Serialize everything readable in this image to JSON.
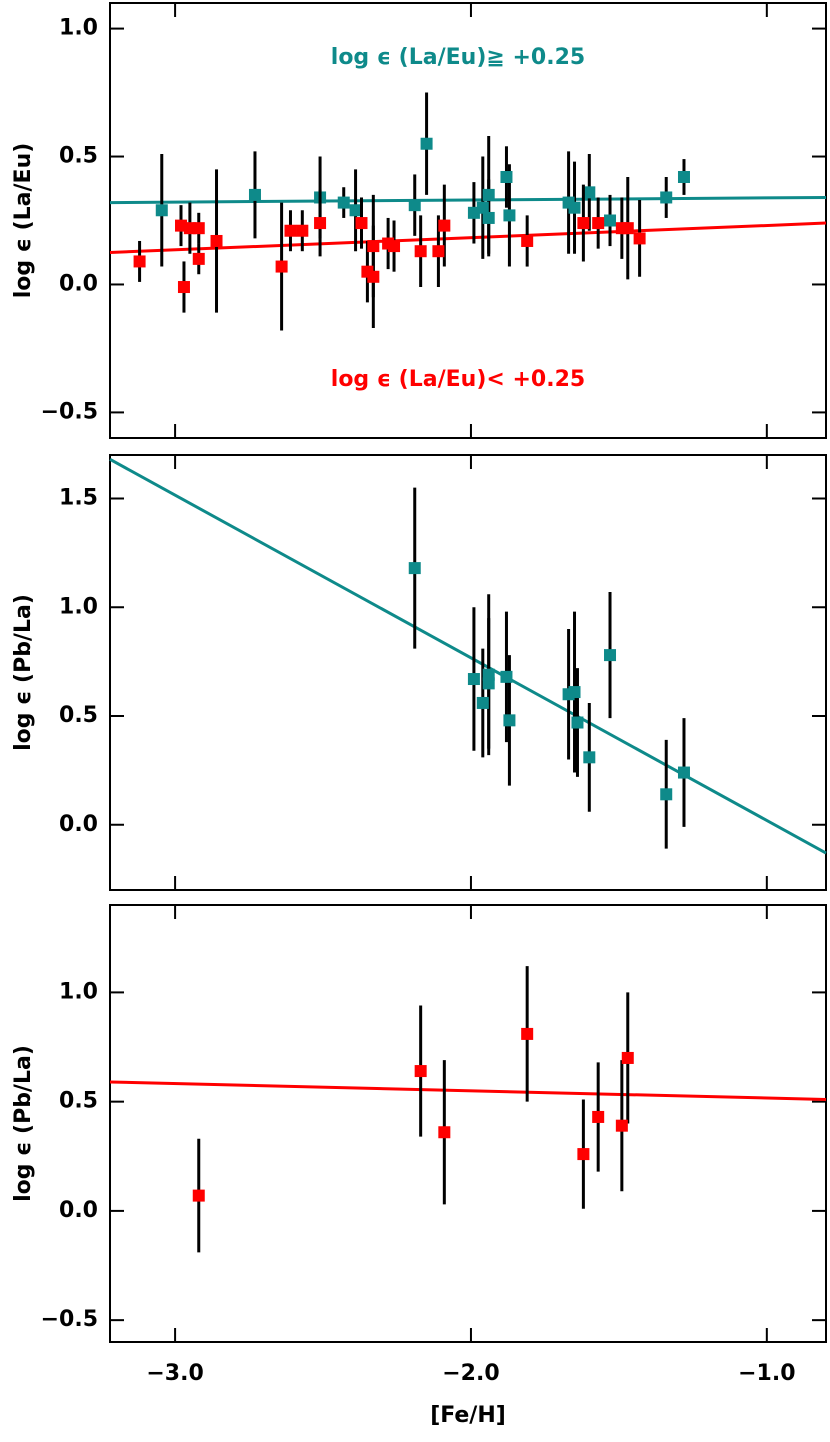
{
  "chart_data": [
    {
      "type": "scatter",
      "ylabel": "log ϵ (La/Eu)",
      "xlim": [
        -3.22,
        -0.8
      ],
      "ylim": [
        -0.6,
        1.1
      ],
      "xticks": [
        {
          "value": -3,
          "label": "−3.0"
        },
        {
          "value": -2,
          "label": "−2.0"
        },
        {
          "value": -1,
          "label": "−1.0"
        }
      ],
      "yticks": [
        {
          "value": -0.5,
          "label": "−0.5"
        },
        {
          "value": 0,
          "label": "0.0"
        },
        0.5,
        {
          "value": 1,
          "label": "1.0"
        }
      ],
      "annotations": [
        {
          "text": "log ϵ (La/Eu)≧ +0.25",
          "color": "#0e8a8a"
        },
        {
          "text": "log ϵ (La/Eu)< +0.25",
          "color": "#ff0000"
        }
      ],
      "series": [
        {
          "color": "#0e8a8a",
          "x": [
            -3.045,
            -2.73,
            -2.51,
            -2.43,
            -2.39,
            -2.19,
            -2.15,
            -1.99,
            -1.96,
            -1.94,
            -1.94,
            -1.88,
            -1.87,
            -1.67,
            -1.65,
            -1.6,
            -1.53,
            -1.34,
            -1.28
          ],
          "values": [
            0.29,
            0.35,
            0.34,
            0.32,
            0.29,
            0.31,
            0.55,
            0.28,
            0.3,
            0.35,
            0.26,
            0.42,
            0.27,
            0.32,
            0.3,
            0.36,
            0.25,
            0.34,
            0.42
          ],
          "errors": [
            0.22,
            0.17,
            0.16,
            0.06,
            0.16,
            0.12,
            0.2,
            0.12,
            0.2,
            0.23,
            0.15,
            0.12,
            0.2,
            0.2,
            0.18,
            0.15,
            0.1,
            0.08,
            0.07
          ]
        },
        {
          "color": "#ff0000",
          "x": [
            -3.12,
            -2.98,
            -2.97,
            -2.95,
            -2.92,
            -2.92,
            -2.86,
            -2.64,
            -2.61,
            -2.57,
            -2.51,
            -2.37,
            -2.35,
            -2.33,
            -2.33,
            -2.28,
            -2.26,
            -2.17,
            -2.11,
            -2.09,
            -1.81,
            -1.62,
            -1.57,
            -1.49,
            -1.47,
            -1.43
          ],
          "values": [
            0.09,
            0.23,
            -0.01,
            0.22,
            0.22,
            0.1,
            0.17,
            0.07,
            0.21,
            0.21,
            0.24,
            0.24,
            0.05,
            0.03,
            0.15,
            0.16,
            0.15,
            0.13,
            0.13,
            0.23,
            0.17,
            0.24,
            0.24,
            0.22,
            0.22,
            0.18
          ],
          "errors": [
            0.08,
            0.08,
            0.1,
            0.1,
            0.06,
            0.06,
            0.28,
            0.25,
            0.08,
            0.08,
            0.13,
            0.1,
            0.12,
            0.2,
            0.2,
            0.1,
            0.1,
            0.14,
            0.14,
            0.16,
            0.1,
            0.15,
            0.1,
            0.12,
            0.2,
            0.15
          ]
        }
      ],
      "fits": [
        {
          "color": "#0e8a8a",
          "x": [
            -3.22,
            -0.8
          ],
          "values": [
            0.32,
            0.34
          ]
        },
        {
          "color": "#ff0000",
          "x": [
            -3.22,
            -0.8
          ],
          "values": [
            0.125,
            0.24
          ]
        }
      ]
    },
    {
      "type": "scatter",
      "ylabel": "log ϵ (Pb/La)",
      "xlim": [
        -3.22,
        -0.8
      ],
      "ylim": [
        -0.3,
        1.7
      ],
      "xticks": [
        {
          "value": -3,
          "label": "−3.0"
        },
        {
          "value": -2,
          "label": "−2.0"
        },
        {
          "value": -1,
          "label": "−1.0"
        }
      ],
      "yticks": [
        {
          "value": 0,
          "label": "0.0"
        },
        0.5,
        {
          "value": 1,
          "label": "1.0"
        },
        1.5
      ],
      "series": [
        {
          "color": "#0e8a8a",
          "x": [
            -2.19,
            -1.99,
            -1.96,
            -1.94,
            -1.94,
            -1.88,
            -1.87,
            -1.67,
            -1.65,
            -1.64,
            -1.6,
            -1.53,
            -1.34,
            -1.28
          ],
          "values": [
            1.18,
            0.67,
            0.56,
            0.69,
            0.65,
            0.68,
            0.48,
            0.6,
            0.61,
            0.47,
            0.31,
            0.78,
            0.14,
            0.24
          ],
          "errors": [
            0.37,
            0.33,
            0.25,
            0.37,
            0.3,
            0.3,
            0.3,
            0.3,
            0.37,
            0.25,
            0.25,
            0.29,
            0.25,
            0.25
          ]
        }
      ],
      "fits": [
        {
          "color": "#0e8a8a",
          "x": [
            -3.22,
            -0.8
          ],
          "values": [
            1.68,
            -0.13
          ]
        }
      ]
    },
    {
      "type": "scatter",
      "ylabel": "log ϵ (Pb/La)",
      "xlabel": "[Fe/H]",
      "xlim": [
        -3.22,
        -0.8
      ],
      "ylim": [
        -0.6,
        1.4
      ],
      "xticks": [
        {
          "value": -3,
          "label": "−3.0"
        },
        {
          "value": -2,
          "label": "−2.0"
        },
        {
          "value": -1,
          "label": "−1.0"
        }
      ],
      "yticks": [
        {
          "value": -0.5,
          "label": "−0.5"
        },
        {
          "value": 0,
          "label": "0.0"
        },
        0.5,
        {
          "value": 1,
          "label": "1.0"
        }
      ],
      "series": [
        {
          "color": "#ff0000",
          "x": [
            -2.92,
            -2.17,
            -2.09,
            -1.81,
            -1.62,
            -1.57,
            -1.49,
            -1.47
          ],
          "values": [
            0.07,
            0.64,
            0.36,
            0.81,
            0.26,
            0.43,
            0.39,
            0.7
          ],
          "errors": [
            0.26,
            0.3,
            0.33,
            0.31,
            0.25,
            0.25,
            0.3,
            0.3
          ]
        }
      ],
      "fits": [
        {
          "color": "#ff0000",
          "x": [
            -3.22,
            -0.8
          ],
          "values": [
            0.59,
            0.51
          ]
        }
      ]
    }
  ]
}
